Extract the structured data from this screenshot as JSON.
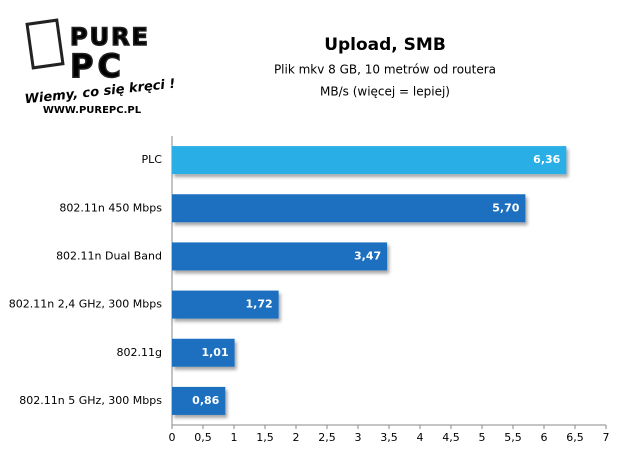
{
  "logo": {
    "top": "PURE",
    "bottom": "PC",
    "slogan": "Wiemy, co się kręci !",
    "url": "WWW.PUREPC.PL"
  },
  "chart_data": {
    "type": "bar",
    "orientation": "horizontal",
    "title": "Upload, SMB",
    "subtitle": [
      "Plik mkv 8 GB, 10 metrów  od routera",
      "MB/s (więcej = lepiej)"
    ],
    "categories": [
      "PLC",
      "802.11n 450 Mbps",
      "802.11n Dual Band",
      "802.11n 2,4 GHz, 300 Mbps",
      "802.11g",
      "802.11n 5 GHz, 300 Mbps"
    ],
    "values": [
      6.36,
      5.7,
      3.47,
      1.72,
      1.01,
      0.86
    ],
    "value_labels": [
      "6,36",
      "5,70",
      "3,47",
      "1,72",
      "1,01",
      "0,86"
    ],
    "colors": [
      "#29aee6",
      "#1a6fbf",
      "#1a6fbf",
      "#1a6fbf",
      "#1a6fbf",
      "#1a6fbf"
    ],
    "xlim": [
      0,
      7
    ],
    "xticks": [
      0,
      {
        "value": 0.5,
        "label": "0,5"
      },
      1,
      {
        "value": 1.5,
        "label": "1,5"
      },
      2,
      {
        "value": 2.5,
        "label": "2,5"
      },
      3,
      {
        "value": 3.5,
        "label": "3,5"
      },
      4,
      {
        "value": 4.5,
        "label": "4,5"
      },
      5,
      {
        "value": 5.5,
        "label": "5,5"
      },
      6,
      {
        "value": 6.5,
        "label": "6,5"
      },
      7
    ],
    "grid": false
  }
}
